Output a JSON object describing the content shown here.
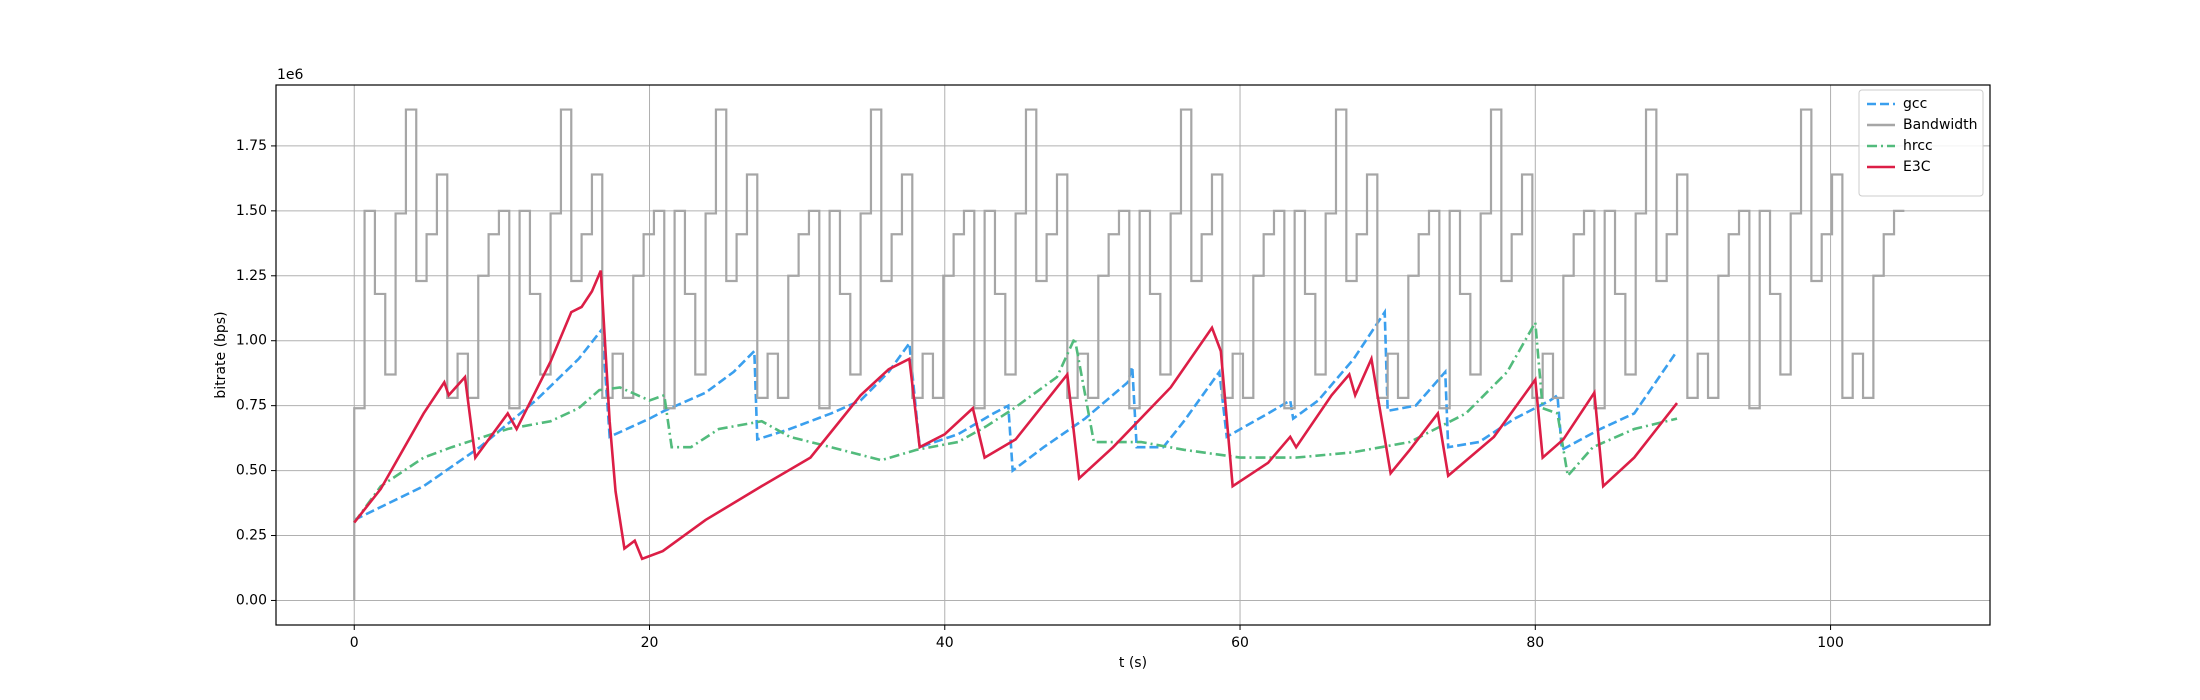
{
  "chart_data": {
    "type": "line",
    "x_label": "t (s)",
    "y_label": "bitrate (bps)",
    "y_offset_label": "1e6",
    "xlim": [
      -5.3,
      110.8
    ],
    "ylim": [
      -0.0945,
      1.9845
    ],
    "xticks": [
      0,
      20,
      40,
      60,
      80,
      100
    ],
    "yticks": [
      {
        "value": 0,
        "label": "0.00"
      },
      0.25,
      {
        "value": 0.5,
        "label": "0.50"
      },
      0.75,
      {
        "value": 1,
        "label": "1.00"
      },
      1.25,
      {
        "value": 1.5,
        "label": "1.50"
      },
      1.75
    ],
    "grid": true,
    "legend": "upper right",
    "series": [
      {
        "name": "gcc",
        "color": "#3a9fee",
        "linestyle": "dashed",
        "x": [
          0,
          4.7,
          8.5,
          12.3,
          15.2,
          16.8,
          17.3,
          20,
          21,
          23.8,
          25.7,
          27.1,
          27.3,
          29.5,
          32.3,
          34.3,
          36.2,
          37.6,
          38.3,
          40.9,
          43.3,
          44.3,
          44.6,
          46.7,
          49.5,
          52.4,
          52.7,
          53,
          54.8,
          56.2,
          58.6,
          59.1,
          61.9,
          63.4,
          63.6,
          65.3,
          67.7,
          69.8,
          70,
          71.9,
          73.9,
          74.1,
          76.2,
          78.6,
          81,
          81.5,
          81.8,
          84.4,
          86.7,
          89.6
        ],
        "values": [
          0.31,
          0.44,
          0.59,
          0.77,
          0.93,
          1.045,
          0.63,
          0.7,
          0.73,
          0.8,
          0.88,
          0.96,
          0.62,
          0.66,
          0.72,
          0.77,
          0.88,
          0.99,
          0.59,
          0.64,
          0.72,
          0.75,
          0.5,
          0.59,
          0.7,
          0.84,
          0.9,
          0.59,
          0.59,
          0.69,
          0.88,
          0.63,
          0.72,
          0.77,
          0.7,
          0.77,
          0.93,
          1.11,
          0.73,
          0.75,
          0.88,
          0.59,
          0.61,
          0.7,
          0.77,
          0.79,
          0.58,
          0.66,
          0.72,
          0.96
        ]
      },
      {
        "name": "Bandwidth",
        "color": "#a6a6a6",
        "linestyle": "solid",
        "step": "post",
        "x": [
          0,
          0,
          0.7,
          1.4,
          2.1,
          2.8,
          3.5,
          4.2,
          4.9,
          5.6,
          6.3,
          7,
          7.7,
          8.4,
          9.1,
          9.8,
          10.5,
          11.2,
          11.9,
          12.6,
          13.3,
          14,
          14.7,
          15.4,
          16.1,
          16.8,
          17.5,
          18.2,
          18.9,
          19.6,
          20.3,
          21,
          21.7,
          22.4,
          23.1,
          23.8,
          24.5,
          25.2,
          25.9,
          26.6,
          27.3,
          28,
          28.7,
          29.4,
          30.1,
          30.8,
          31.5,
          32.2,
          32.9,
          33.6,
          34.3,
          35,
          35.7,
          36.4,
          37.1,
          37.8,
          38.5,
          39.2,
          39.9,
          40.6,
          41.3,
          42,
          42.7,
          43.4,
          44.1,
          44.8,
          45.5,
          46.2,
          46.9,
          47.6,
          48.3,
          49,
          49.7,
          50.4,
          51.1,
          51.8,
          52.5,
          53.2,
          53.9,
          54.6,
          55.3,
          56,
          56.7,
          57.4,
          58.1,
          58.8,
          59.5,
          60.2,
          60.9,
          61.6,
          62.3,
          63,
          63.7,
          64.4,
          65.1,
          65.8,
          66.5,
          67.2,
          67.9,
          68.6,
          69.3,
          70,
          70.7,
          71.4,
          72.1,
          72.8,
          73.5,
          74.2,
          74.9,
          75.6,
          76.3,
          77,
          77.7,
          78.4,
          79.1,
          79.8,
          80.5,
          81.2,
          81.9,
          82.6,
          83.3,
          84,
          84.7,
          85.4,
          86.1,
          86.8,
          87.5,
          88.2,
          88.9,
          89.6,
          90.3,
          91,
          91.7,
          92.4,
          93.1,
          93.8,
          94.5,
          95.2,
          95.9,
          96.6,
          97.3,
          98,
          98.7,
          99.4,
          100.1,
          100.8,
          101.5,
          102.2,
          102.9,
          103.6,
          104.3,
          105
        ],
        "values": [
          0,
          0.74,
          1.5,
          1.18,
          0.87,
          1.49,
          1.89,
          1.23,
          1.41,
          1.64,
          0.78,
          0.95,
          0.78,
          1.25,
          1.41,
          1.5,
          0.74,
          1.5,
          1.18,
          0.87,
          1.49,
          1.89,
          1.23,
          1.41,
          1.64,
          0.78,
          0.95,
          0.78,
          1.25,
          1.41,
          1.5,
          0.74,
          1.5,
          1.18,
          0.87,
          1.49,
          1.89,
          1.23,
          1.41,
          1.64,
          0.78,
          0.95,
          0.78,
          1.25,
          1.41,
          1.5,
          0.74,
          1.5,
          1.18,
          0.87,
          1.49,
          1.89,
          1.23,
          1.41,
          1.64,
          0.78,
          0.95,
          0.78,
          1.25,
          1.41,
          1.5,
          0.74,
          1.5,
          1.18,
          0.87,
          1.49,
          1.89,
          1.23,
          1.41,
          1.64,
          0.78,
          0.95,
          0.78,
          1.25,
          1.41,
          1.5,
          0.74,
          1.5,
          1.18,
          0.87,
          1.49,
          1.89,
          1.23,
          1.41,
          1.64,
          0.78,
          0.95,
          0.78,
          1.25,
          1.41,
          1.5,
          0.74,
          1.5,
          1.18,
          0.87,
          1.49,
          1.89,
          1.23,
          1.41,
          1.64,
          0.78,
          0.95,
          0.78,
          1.25,
          1.41,
          1.5,
          0.74,
          1.5,
          1.18,
          0.87,
          1.49,
          1.89,
          1.23,
          1.41,
          1.64,
          0.78,
          0.95,
          0.78,
          1.25,
          1.41,
          1.5,
          0.74,
          1.5,
          1.18,
          0.87,
          1.49,
          1.89,
          1.23,
          1.41,
          1.64,
          0.78,
          0.95,
          0.78,
          1.25,
          1.41,
          1.5,
          0.74,
          1.5,
          1.18,
          0.87,
          1.49,
          1.89,
          1.23,
          1.41,
          1.64,
          0.78,
          0.95,
          0.78,
          1.25,
          1.41,
          1.5,
          1.5
        ]
      },
      {
        "name": "hrcc",
        "color": "#52bb7c",
        "linestyle": "dashdot",
        "x": [
          0,
          1.8,
          4.7,
          6.6,
          10.4,
          13.3,
          15.2,
          16.6,
          18,
          20,
          21,
          21.5,
          22.8,
          24.7,
          27.6,
          29.5,
          32.3,
          35.7,
          38.1,
          40.9,
          42.8,
          44.7,
          47.6,
          48.8,
          50.1,
          53.3,
          56.2,
          60,
          63.8,
          67.6,
          71.5,
          75.3,
          78.1,
          80,
          80.5,
          81.5,
          82.2,
          83.9,
          86.7,
          89.6
        ],
        "values": [
          0.3,
          0.44,
          0.55,
          0.59,
          0.66,
          0.69,
          0.74,
          0.81,
          0.82,
          0.77,
          0.79,
          0.59,
          0.59,
          0.66,
          0.69,
          0.63,
          0.59,
          0.54,
          0.58,
          0.61,
          0.67,
          0.74,
          0.86,
          1.01,
          0.61,
          0.61,
          0.58,
          0.55,
          0.55,
          0.57,
          0.61,
          0.72,
          0.88,
          1.07,
          0.74,
          0.72,
          0.48,
          0.59,
          0.66,
          0.7
        ]
      },
      {
        "name": "E3C",
        "color": "#dc1e46",
        "linestyle": "solid",
        "x": [
          0,
          1.8,
          4.7,
          6.1,
          6.4,
          7.5,
          8.2,
          10.4,
          11,
          13.3,
          14.7,
          15.4,
          16.1,
          16.7,
          17.3,
          17.7,
          18.3,
          19,
          19.5,
          20.9,
          23.8,
          27.6,
          30.9,
          34.3,
          36.2,
          37.6,
          38.3,
          40,
          41.9,
          42.7,
          44.8,
          48.3,
          49.1,
          51.4,
          55.3,
          58.1,
          58.7,
          59.5,
          61.9,
          63.4,
          63.8,
          66.2,
          67.4,
          67.8,
          68.9,
          70.2,
          71.5,
          73.4,
          74.1,
          77.2,
          80,
          80.5,
          81.9,
          84,
          84.6,
          86.7,
          89.6
        ],
        "values": [
          0.3,
          0.43,
          0.72,
          0.84,
          0.79,
          0.86,
          0.55,
          0.72,
          0.66,
          0.92,
          1.11,
          1.13,
          1.19,
          1.27,
          0.69,
          0.42,
          0.2,
          0.23,
          0.16,
          0.19,
          0.31,
          0.44,
          0.55,
          0.79,
          0.89,
          0.93,
          0.59,
          0.64,
          0.74,
          0.55,
          0.62,
          0.87,
          0.47,
          0.59,
          0.82,
          1.05,
          0.96,
          0.44,
          0.53,
          0.63,
          0.59,
          0.79,
          0.87,
          0.79,
          0.93,
          0.49,
          0.58,
          0.72,
          0.48,
          0.63,
          0.85,
          0.55,
          0.62,
          0.8,
          0.44,
          0.55,
          0.76
        ]
      }
    ]
  }
}
